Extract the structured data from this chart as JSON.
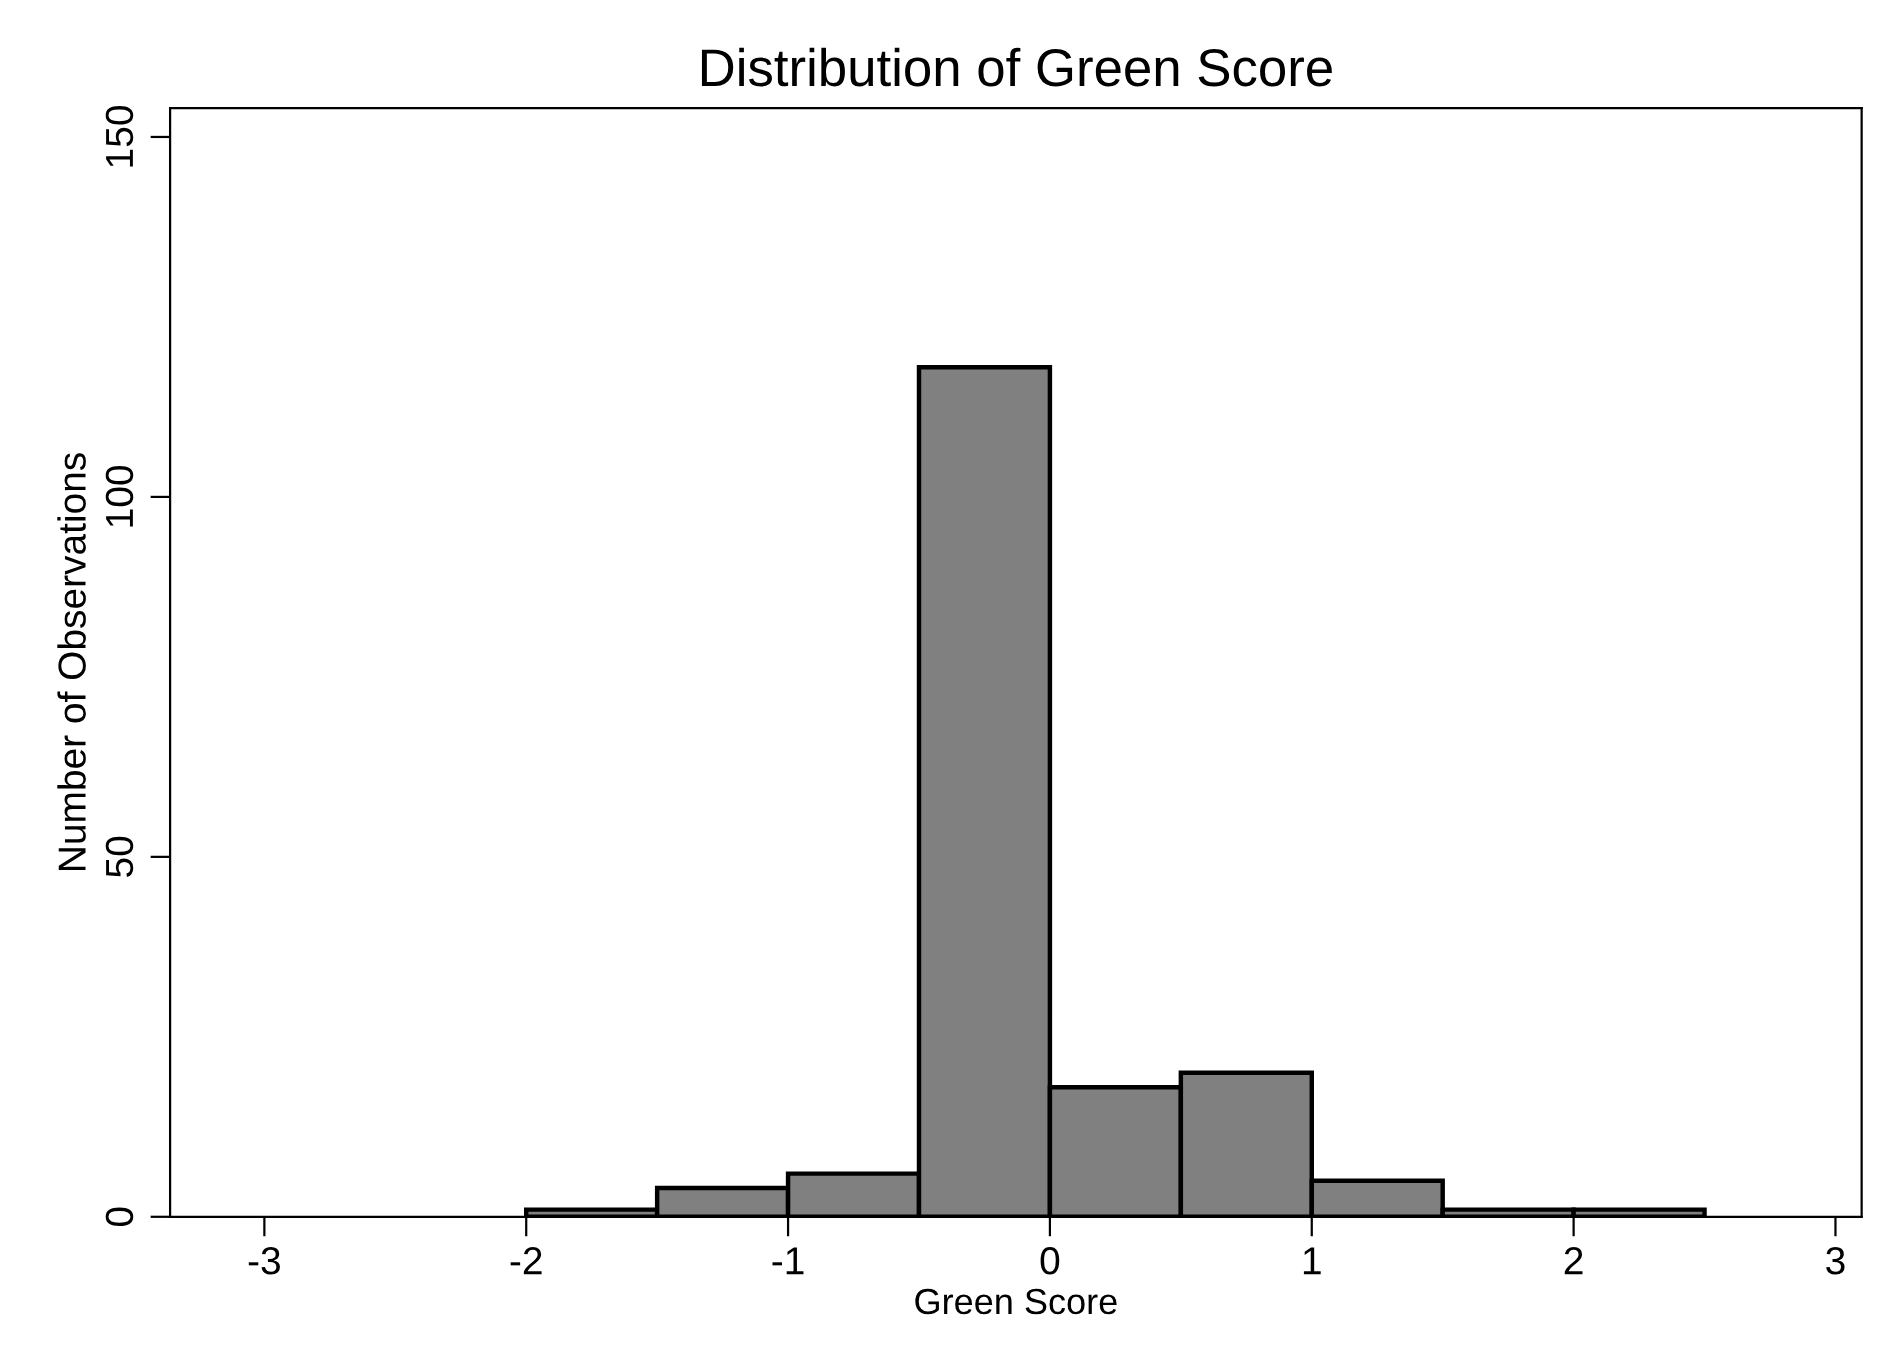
{
  "chart_data": {
    "type": "histogram",
    "title": "Distribution of Green Score",
    "xlabel": "Green Score",
    "ylabel": "Number of Observations",
    "bins": [
      -2,
      -1.5,
      -1,
      -0.5,
      0,
      0.5,
      1,
      1.5,
      2,
      2.5
    ],
    "values": [
      1,
      4,
      6,
      118,
      18,
      20,
      5,
      1,
      1
    ],
    "color": "#808080",
    "xlim": [
      -3.36,
      3.1
    ],
    "xticks": [
      {
        "value": -3,
        "label": "-3"
      },
      {
        "value": -2,
        "label": "-2"
      },
      {
        "value": -1,
        "label": "-1"
      },
      0,
      1,
      2,
      3
    ],
    "ylim": [
      0,
      154
    ],
    "yticks": [
      0,
      50,
      100,
      150
    ],
    "grid": false
  }
}
